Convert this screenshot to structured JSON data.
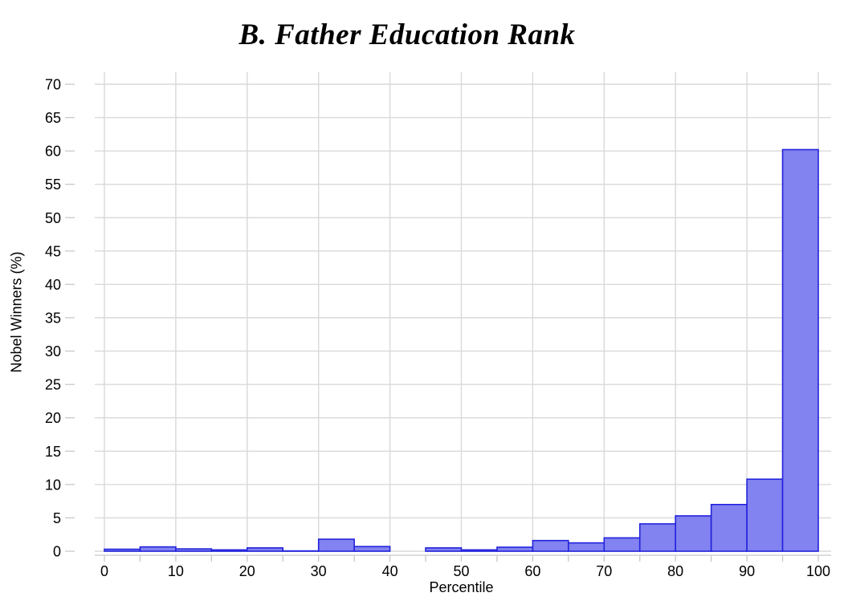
{
  "chart_data": {
    "type": "bar",
    "subtype": "histogram",
    "title": "B. Father Education Rank",
    "xlabel": "Percentile",
    "ylabel": "Nobel Winners (%)",
    "xlim": [
      0,
      100
    ],
    "ylim": [
      0,
      70
    ],
    "y_ticks": [
      0,
      5,
      10,
      15,
      20,
      25,
      30,
      35,
      40,
      45,
      50,
      55,
      60,
      65,
      70
    ],
    "x_major_ticks": [
      0,
      10,
      20,
      30,
      40,
      50,
      60,
      70,
      80,
      90,
      100
    ],
    "x_minor_tick_step": 5,
    "grid": true,
    "legend_position": "none",
    "bin_width": 5,
    "bins": [
      {
        "start": 0,
        "end": 5,
        "pct": 0.3
      },
      {
        "start": 5,
        "end": 10,
        "pct": 0.65
      },
      {
        "start": 10,
        "end": 15,
        "pct": 0.35
      },
      {
        "start": 15,
        "end": 20,
        "pct": 0.2
      },
      {
        "start": 20,
        "end": 25,
        "pct": 0.5
      },
      {
        "start": 25,
        "end": 30,
        "pct": 0.05
      },
      {
        "start": 30,
        "end": 35,
        "pct": 1.8
      },
      {
        "start": 35,
        "end": 40,
        "pct": 0.7
      },
      {
        "start": 40,
        "end": 45,
        "pct": 0
      },
      {
        "start": 45,
        "end": 50,
        "pct": 0.5
      },
      {
        "start": 50,
        "end": 55,
        "pct": 0.2
      },
      {
        "start": 55,
        "end": 60,
        "pct": 0.6
      },
      {
        "start": 60,
        "end": 65,
        "pct": 1.6
      },
      {
        "start": 65,
        "end": 70,
        "pct": 1.25
      },
      {
        "start": 70,
        "end": 75,
        "pct": 2.0
      },
      {
        "start": 75,
        "end": 80,
        "pct": 4.1
      },
      {
        "start": 80,
        "end": 85,
        "pct": 5.3
      },
      {
        "start": 85,
        "end": 90,
        "pct": 7.0
      },
      {
        "start": 90,
        "end": 95,
        "pct": 10.8
      },
      {
        "start": 95,
        "end": 100,
        "pct": 60.2
      }
    ],
    "colors": {
      "bar_fill": "#8282f0",
      "bar_border": "#2323dc",
      "grid": "#d9d9d9",
      "tick": "#c8c8c8",
      "axis_line": "#c8c8c8",
      "text": "#000000",
      "background": "#ffffff"
    }
  }
}
